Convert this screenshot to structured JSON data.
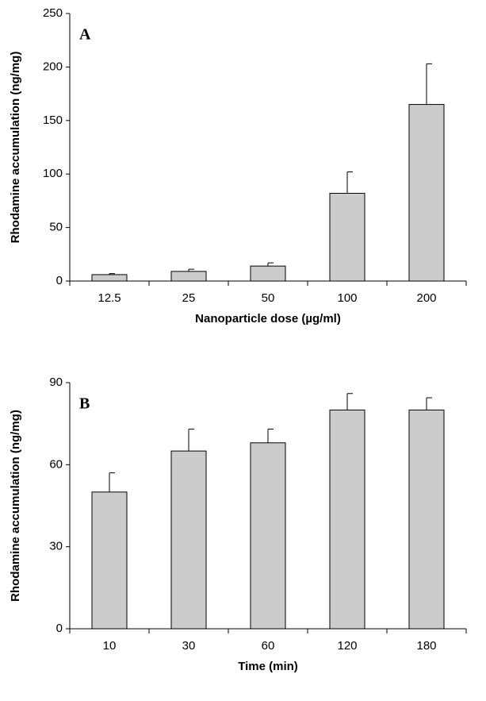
{
  "chart_data": [
    {
      "type": "bar",
      "label": "A",
      "x_label": "Nanoparticle dose (µg/ml)",
      "y_label": "Rhodamine accumulation (ng/mg)",
      "categories": [
        "12.5",
        "25",
        "50",
        "100",
        "200"
      ],
      "values": [
        6,
        9,
        14,
        82,
        165
      ],
      "errors": [
        1,
        2,
        3,
        20,
        38
      ],
      "color": "#cccccc",
      "ylim": [
        0,
        250
      ],
      "yticks": [
        0,
        50,
        100,
        150,
        200,
        250
      ]
    },
    {
      "type": "bar",
      "label": "B",
      "x_label": "Time (min)",
      "y_label": "Rhodamine accumulation (ng/mg)",
      "categories": [
        "10",
        "30",
        "60",
        "120",
        "180"
      ],
      "values": [
        50,
        65,
        68,
        80,
        80
      ],
      "errors": [
        7,
        8,
        5,
        6,
        4.5
      ],
      "color": "#cccccc",
      "ylim": [
        0,
        90
      ],
      "yticks": [
        0,
        30,
        60,
        90
      ]
    }
  ]
}
